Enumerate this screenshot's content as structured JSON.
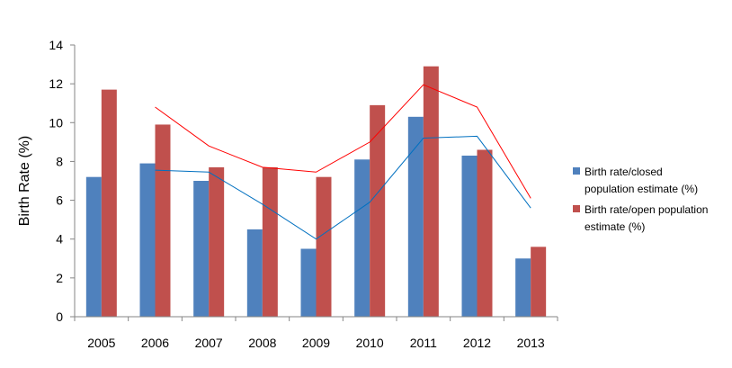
{
  "chart_data": {
    "type": "bar",
    "title": "",
    "xlabel": "",
    "ylabel": "Birth Rate (%)",
    "ylim": [
      0,
      14
    ],
    "yticks": [
      0,
      2,
      4,
      6,
      8,
      10,
      12,
      14
    ],
    "grid": false,
    "legend_position": "right",
    "categories": [
      "2005",
      "2006",
      "2007",
      "2008",
      "2009",
      "2010",
      "2011",
      "2012",
      "2013"
    ],
    "series": [
      {
        "name": "Birth rate/closed population estimate (%)",
        "legend_lines": [
          "Birth rate/closed",
          "population estimate (%)"
        ],
        "color": "#4F81BD",
        "values": [
          7.2,
          7.9,
          7.0,
          4.5,
          3.5,
          8.1,
          10.3,
          8.3,
          3.0
        ]
      },
      {
        "name": "Birth rate/open population estimate (%)",
        "legend_lines": [
          "Birth rate/open population",
          "estimate (%)"
        ],
        "color": "#C0504D",
        "values": [
          11.7,
          9.9,
          7.7,
          7.7,
          7.2,
          10.9,
          12.9,
          8.6,
          3.6
        ]
      }
    ],
    "lines": [
      {
        "color": "#0070C0",
        "values": [
          null,
          7.55,
          7.45,
          5.8,
          4.0,
          5.9,
          9.2,
          9.3,
          5.6
        ]
      },
      {
        "color": "#FF0000",
        "values": [
          null,
          10.8,
          8.8,
          7.7,
          7.45,
          9.0,
          11.95,
          10.8,
          6.1
        ]
      }
    ]
  }
}
